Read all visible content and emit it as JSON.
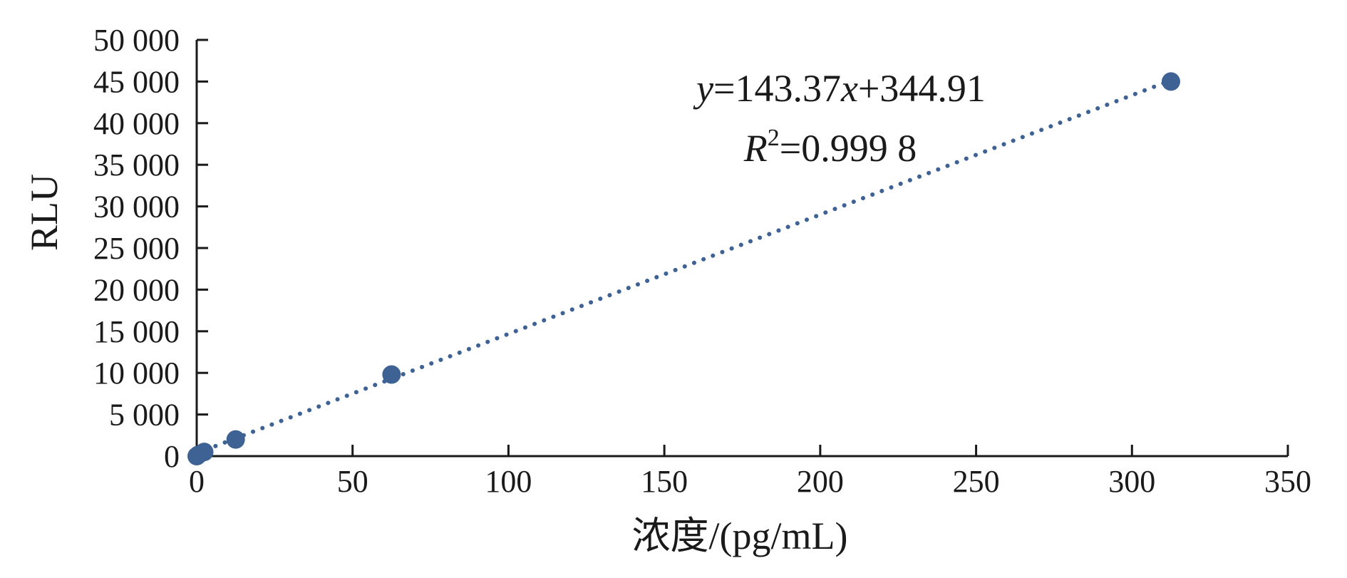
{
  "chart_data": {
    "type": "scatter",
    "xlabel": "浓度/(pg/mL)",
    "ylabel": "RLU",
    "xlim": [
      0,
      350
    ],
    "ylim": [
      0,
      50000
    ],
    "x_ticks": [
      0,
      50,
      100,
      150,
      200,
      250,
      300,
      350
    ],
    "x_tick_labels": [
      "0",
      "50",
      "100",
      "150",
      "200",
      "250",
      "300",
      "350"
    ],
    "y_ticks": [
      0,
      5000,
      10000,
      15000,
      20000,
      25000,
      30000,
      35000,
      40000,
      45000,
      50000
    ],
    "y_tick_labels": [
      "0",
      "5 000",
      "10 000",
      "15 000",
      "20 000",
      "25 000",
      "30 000",
      "35 000",
      "40 000",
      "45 000",
      "50 000"
    ],
    "grid": false,
    "series": [
      {
        "points": [
          {
            "x": 0,
            "y": 0
          },
          {
            "x": 0.5,
            "y": 150
          },
          {
            "x": 2.4,
            "y": 500
          },
          {
            "x": 12.5,
            "y": 2000
          },
          {
            "x": 62.5,
            "y": 9800
          },
          {
            "x": 312.5,
            "y": 45000
          }
        ],
        "color": "#3e6293"
      }
    ],
    "trendline": {
      "slope": 143.37,
      "intercept": 344.91,
      "x_range": [
        0,
        312.5
      ],
      "style": "dotted",
      "color": "#3e6293"
    },
    "annotations": {
      "equation": {
        "y_var": "y",
        "eq_middle": "=143.37",
        "x_var": "x",
        "eq_end": "+344.91"
      },
      "r_squared": {
        "r_var": "R",
        "sup": "2",
        "value": "=0.999 8"
      }
    }
  }
}
